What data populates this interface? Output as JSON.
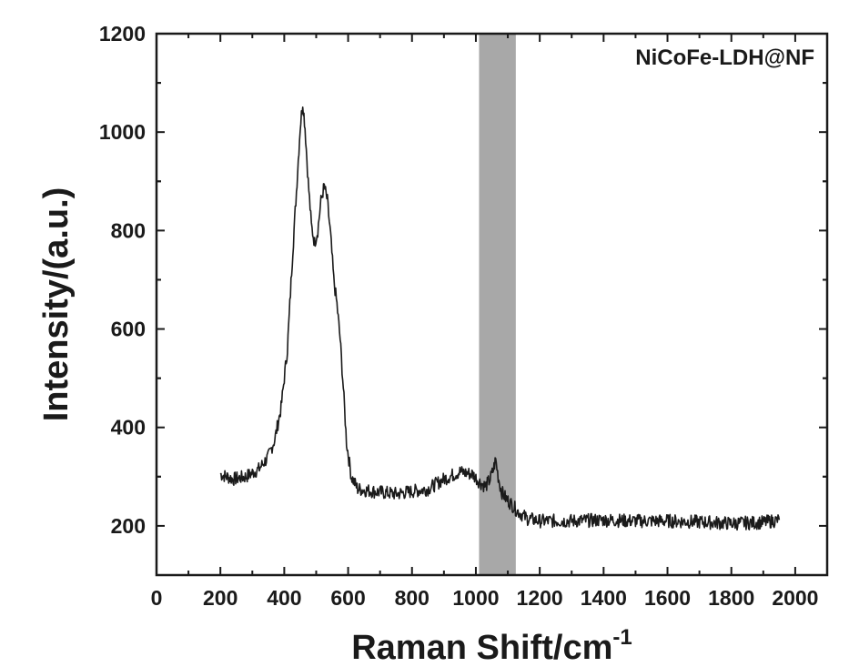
{
  "chart_data": {
    "type": "line",
    "xlabel": "Raman Shift/cm",
    "xlabel_sup": "-1",
    "ylabel": "Intensity/(a.u.)",
    "annotation": "NiCoFe-LDH@NF",
    "xlim": [
      0,
      2100
    ],
    "ylim": [
      100,
      1200
    ],
    "x_ticks": [
      0,
      200,
      400,
      600,
      800,
      1000,
      1200,
      1400,
      1600,
      1800,
      2000
    ],
    "y_ticks": [
      200,
      400,
      600,
      800,
      1000,
      1200
    ],
    "shaded_band": [
      1010,
      1125
    ],
    "line_color": "#1a1a1a",
    "band_color": "#a8a8a8",
    "series": [
      {
        "x": [
          200,
          240,
          280,
          320,
          350,
          370,
          390,
          410,
          425,
          440,
          450,
          458,
          465,
          475,
          485,
          495,
          505,
          515,
          525,
          535,
          545,
          555,
          565,
          575,
          585,
          595,
          610,
          630,
          680,
          750,
          800,
          850,
          900,
          950,
          990,
          1010,
          1030,
          1045,
          1055,
          1062,
          1070,
          1080,
          1095,
          1110,
          1130,
          1160,
          1200,
          1300,
          1400,
          1500,
          1600,
          1700,
          1800,
          1900,
          1950
        ],
        "y": [
          305,
          295,
          300,
          315,
          340,
          375,
          440,
          560,
          740,
          900,
          1010,
          1060,
          1010,
          900,
          810,
          775,
          800,
          860,
          890,
          860,
          790,
          700,
          650,
          580,
          480,
          370,
          300,
          275,
          270,
          265,
          270,
          275,
          295,
          310,
          305,
          290,
          280,
          295,
          315,
          335,
          300,
          270,
          255,
          245,
          230,
          215,
          210,
          210,
          212,
          210,
          210,
          208,
          205,
          207,
          212
        ]
      }
    ]
  }
}
